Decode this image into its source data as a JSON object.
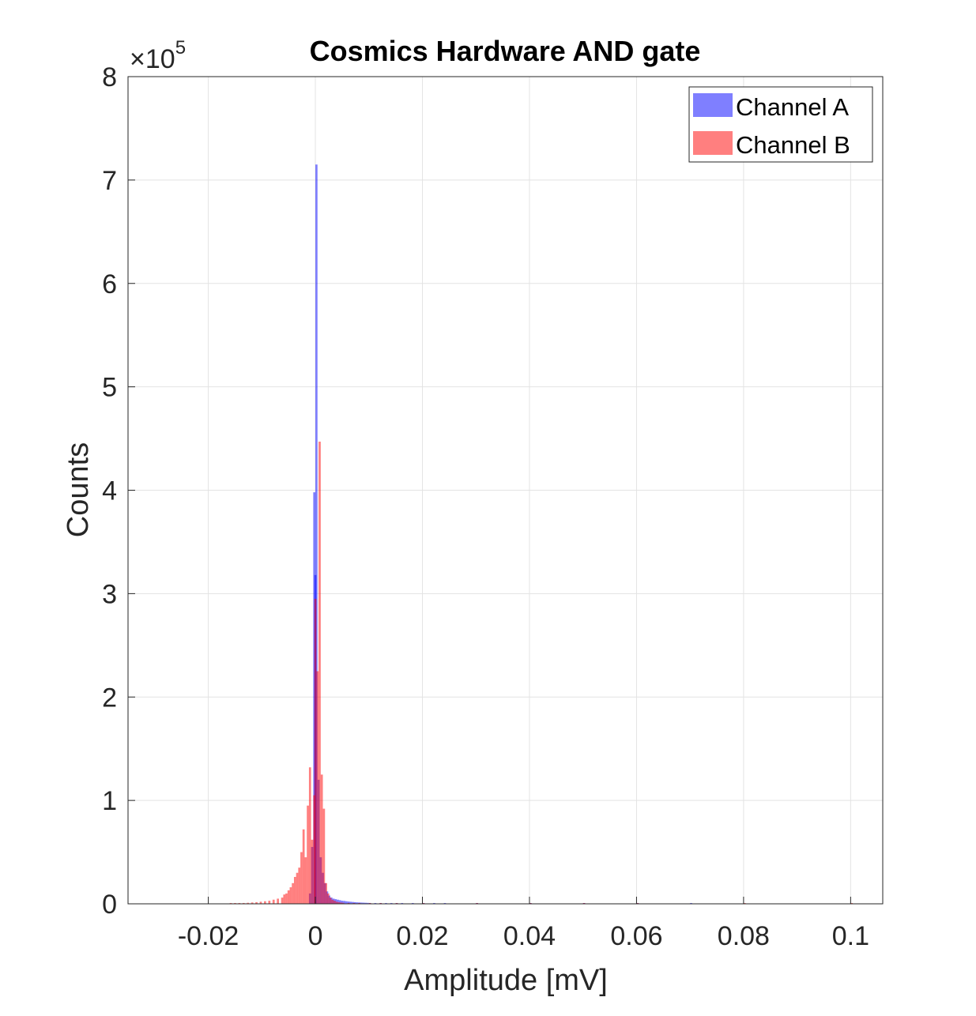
{
  "chart_data": {
    "type": "bar",
    "title": "Cosmics Hardware AND gate",
    "xlabel": "Amplitude [mV]",
    "ylabel": "Counts",
    "y_exponent_base": "×10",
    "y_exponent": "5",
    "xlim": [
      -0.035,
      0.106
    ],
    "ylim": [
      0,
      8
    ],
    "x_ticks": [
      -0.02,
      0,
      0.02,
      0.04,
      0.06,
      0.08,
      0.1
    ],
    "x_tick_labels": [
      "-0.02",
      "0",
      "0.02",
      "0.04",
      "0.06",
      "0.08",
      "0.1"
    ],
    "y_ticks": [
      0,
      1,
      2,
      3,
      4,
      5,
      6,
      7,
      8
    ],
    "y_tick_labels": [
      "0",
      "1",
      "2",
      "3",
      "4",
      "5",
      "6",
      "7",
      "8"
    ],
    "grid": true,
    "legend_position": "top-right",
    "bin_width": 0.0004,
    "series": [
      {
        "name": "Channel A",
        "color": "#0000ff",
        "opacity": 0.5,
        "bins": [
          [
            -0.0012,
            0.1
          ],
          [
            -0.0008,
            0.55
          ],
          [
            -0.0004,
            3.98
          ],
          [
            -0.0002,
            3.18
          ],
          [
            0.0,
            7.15
          ],
          [
            0.0004,
            1.2
          ],
          [
            0.0008,
            0.45
          ],
          [
            0.0012,
            0.3
          ],
          [
            0.0016,
            0.2
          ],
          [
            0.002,
            0.12
          ],
          [
            0.0024,
            0.08
          ],
          [
            0.0028,
            0.06
          ],
          [
            0.0032,
            0.05
          ],
          [
            0.0036,
            0.045
          ],
          [
            0.004,
            0.04
          ],
          [
            0.0044,
            0.035
          ],
          [
            0.0048,
            0.03
          ],
          [
            0.0052,
            0.028
          ],
          [
            0.0056,
            0.025
          ],
          [
            0.006,
            0.022
          ],
          [
            0.0064,
            0.02
          ],
          [
            0.0068,
            0.018
          ],
          [
            0.0072,
            0.016
          ],
          [
            0.0076,
            0.014
          ],
          [
            0.008,
            0.013
          ],
          [
            0.0084,
            0.012
          ],
          [
            0.0088,
            0.011
          ],
          [
            0.0092,
            0.01
          ],
          [
            0.0096,
            0.009
          ],
          [
            0.01,
            0.008
          ],
          [
            0.011,
            0.007
          ],
          [
            0.012,
            0.006
          ],
          [
            0.013,
            0.005
          ],
          [
            0.014,
            0.004
          ],
          [
            0.015,
            0.004
          ],
          [
            0.016,
            0.003
          ],
          [
            0.018,
            0.003
          ],
          [
            0.02,
            0.002
          ],
          [
            0.022,
            0.002
          ],
          [
            0.024,
            0.002
          ],
          [
            0.03,
            0.001
          ],
          [
            0.04,
            0.001
          ],
          [
            0.05,
            0.001
          ],
          [
            0.06,
            0.001
          ],
          [
            0.07,
            0.001
          ]
        ]
      },
      {
        "name": "Channel B",
        "color": "#ff0000",
        "opacity": 0.5,
        "bins": [
          [
            -0.016,
            0.004
          ],
          [
            -0.0152,
            0.005
          ],
          [
            -0.0144,
            0.006
          ],
          [
            -0.0136,
            0.008
          ],
          [
            -0.0128,
            0.01
          ],
          [
            -0.012,
            0.013
          ],
          [
            -0.0112,
            0.016
          ],
          [
            -0.0104,
            0.02
          ],
          [
            -0.0096,
            0.025
          ],
          [
            -0.0088,
            0.03
          ],
          [
            -0.008,
            0.04
          ],
          [
            -0.0072,
            0.05
          ],
          [
            -0.0064,
            0.06
          ],
          [
            -0.006,
            0.09
          ],
          [
            -0.0056,
            0.1
          ],
          [
            -0.0052,
            0.13
          ],
          [
            -0.0048,
            0.16
          ],
          [
            -0.0044,
            0.2
          ],
          [
            -0.004,
            0.26
          ],
          [
            -0.0036,
            0.3
          ],
          [
            -0.0032,
            0.35
          ],
          [
            -0.0028,
            0.5
          ],
          [
            -0.0024,
            0.72
          ],
          [
            -0.002,
            0.45
          ],
          [
            -0.0016,
            0.95
          ],
          [
            -0.0012,
            1.32
          ],
          [
            -0.0008,
            0.62
          ],
          [
            -0.0004,
            1.05
          ],
          [
            -0.0002,
            2.95
          ],
          [
            0.0002,
            2.25
          ],
          [
            0.0006,
            4.47
          ],
          [
            0.001,
            1.25
          ],
          [
            0.0014,
            0.92
          ],
          [
            0.0018,
            0.2
          ],
          [
            0.0022,
            0.1
          ],
          [
            0.0026,
            0.06
          ],
          [
            0.003,
            0.04
          ],
          [
            0.0034,
            0.03
          ],
          [
            0.0038,
            0.02
          ],
          [
            0.0042,
            0.015
          ],
          [
            0.0046,
            0.012
          ],
          [
            0.005,
            0.01
          ],
          [
            0.006,
            0.008
          ],
          [
            0.007,
            0.006
          ],
          [
            0.008,
            0.005
          ],
          [
            0.01,
            0.004
          ],
          [
            0.012,
            0.003
          ],
          [
            0.015,
            0.002
          ],
          [
            0.02,
            0.002
          ],
          [
            0.03,
            0.001
          ],
          [
            0.04,
            0.001
          ],
          [
            0.05,
            0.001
          ],
          [
            0.06,
            0.001
          ],
          [
            0.08,
            0.001
          ],
          [
            0.1,
            0.001
          ]
        ]
      }
    ]
  }
}
